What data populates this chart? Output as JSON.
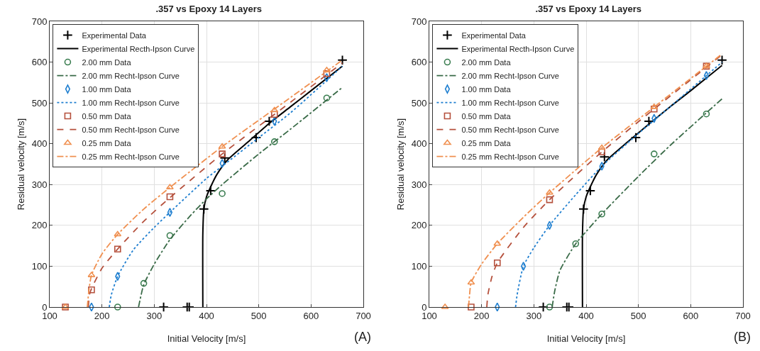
{
  "chart_data": [
    {
      "type": "scatter",
      "title": ".357 vs Epoxy 14 Layers",
      "xlabel": "Initial Velocity [m/s]",
      "ylabel": "Residual velocity [m/s]",
      "xlim": [
        100,
        700
      ],
      "xticks": [
        100,
        200,
        300,
        400,
        500,
        600,
        700
      ],
      "ylim": [
        0,
        700
      ],
      "yticks": [
        0,
        100,
        200,
        300,
        400,
        500,
        600,
        700
      ],
      "grid": true,
      "legend": "top left",
      "annotations": [
        "(A)"
      ],
      "series": [
        {
          "name": "Experimental Data",
          "type": "scatter",
          "marker": "cross",
          "color": "#000000",
          "x": [
            318,
            363,
            367,
            395,
            408,
            435,
            495,
            520,
            660
          ],
          "values": [
            0,
            0,
            0,
            240,
            285,
            365,
            415,
            455,
            605
          ]
        },
        {
          "name": "Experimental Recth-Ipson Curve",
          "type": "line",
          "line_style": "solid",
          "color": "#000000",
          "x": [
            393,
            393,
            395,
            400,
            410,
            420,
            440,
            480,
            520,
            560,
            600,
            660
          ],
          "values": [
            0,
            180,
            240,
            270,
            300,
            325,
            360,
            405,
            450,
            490,
            530,
            590
          ]
        },
        {
          "name": "2.00 mm Data",
          "type": "scatter",
          "marker": "circle",
          "color": "#3a7d50",
          "x": [
            230,
            280,
            330,
            430,
            530,
            630
          ],
          "values": [
            0,
            58,
            175,
            278,
            405,
            512
          ]
        },
        {
          "name": "2.00 mm Recht-Ipson Curve",
          "type": "line",
          "line_style": "dashdot",
          "color": "#3a6b48",
          "x": [
            270,
            275,
            280,
            300,
            330,
            370,
            400,
            430,
            500,
            560,
            660
          ],
          "values": [
            0,
            30,
            55,
            105,
            165,
            225,
            265,
            300,
            375,
            435,
            538
          ]
        },
        {
          "name": "1.00 mm Data",
          "type": "scatter",
          "marker": "diamond",
          "color": "#1f7fd0",
          "x": [
            180,
            230,
            330,
            430,
            530,
            630
          ],
          "values": [
            0,
            75,
            232,
            352,
            455,
            562
          ]
        },
        {
          "name": "1.00 mm Recht-Ipson Curve",
          "type": "line",
          "line_style": "dotted",
          "color": "#1f7fd0",
          "x": [
            214,
            218,
            230,
            260,
            300,
            330,
            400,
            430,
            500,
            560,
            660
          ],
          "values": [
            0,
            30,
            75,
            140,
            195,
            232,
            315,
            345,
            415,
            475,
            590
          ]
        },
        {
          "name": "0.50 mm Data",
          "type": "scatter",
          "marker": "square",
          "color": "#b5503c",
          "x": [
            130,
            180,
            230,
            330,
            430,
            530,
            630
          ],
          "values": [
            0,
            42,
            142,
            270,
            375,
            472,
            572
          ]
        },
        {
          "name": "0.50 mm Recht-Ipson Curve",
          "type": "line",
          "line_style": "dashed",
          "color": "#b5503c",
          "x": [
            174,
            176,
            180,
            200,
            230,
            280,
            330,
            430,
            530,
            660
          ],
          "values": [
            0,
            30,
            45,
            95,
            142,
            210,
            268,
            375,
            472,
            598
          ]
        },
        {
          "name": "0.25 mm Data",
          "type": "scatter",
          "marker": "triangle",
          "color": "#f09050",
          "x": [
            130,
            180,
            230,
            330,
            430,
            530,
            630
          ],
          "values": [
            0,
            78,
            178,
            293,
            393,
            482,
            580
          ]
        },
        {
          "name": "0.25 mm Recht-Ipson Curve",
          "type": "line",
          "line_style": "dashdot",
          "color": "#f09050",
          "x": [
            172,
            175,
            180,
            200,
            230,
            280,
            330,
            430,
            530,
            660
          ],
          "values": [
            0,
            40,
            78,
            130,
            178,
            240,
            293,
            393,
            485,
            605
          ]
        }
      ]
    },
    {
      "type": "scatter",
      "title": ".357 vs Epoxy 14 Layers",
      "xlabel": "Initial Velocity [m/s]",
      "ylabel": "Residual velocity [m/s]",
      "xlim": [
        100,
        700
      ],
      "xticks": [
        100,
        200,
        300,
        400,
        500,
        600,
        700
      ],
      "ylim": [
        0,
        700
      ],
      "yticks": [
        0,
        100,
        200,
        300,
        400,
        500,
        600,
        700
      ],
      "grid": true,
      "legend": "top left",
      "annotations": [
        "(B)"
      ],
      "series": [
        {
          "name": "Experimental Data",
          "type": "scatter",
          "marker": "cross",
          "color": "#000000",
          "x": [
            318,
            363,
            367,
            395,
            408,
            435,
            495,
            520,
            660
          ],
          "values": [
            0,
            0,
            0,
            240,
            285,
            368,
            415,
            455,
            605
          ]
        },
        {
          "name": "Experimental Recth-Ipson Curve",
          "type": "line",
          "line_style": "solid",
          "color": "#000000",
          "x": [
            393,
            393,
            395,
            400,
            410,
            420,
            440,
            480,
            520,
            560,
            600,
            660
          ],
          "values": [
            0,
            180,
            240,
            270,
            300,
            325,
            360,
            405,
            448,
            490,
            530,
            592
          ]
        },
        {
          "name": "2.00 mm Data",
          "type": "scatter",
          "marker": "circle",
          "color": "#3a7d50",
          "x": [
            330,
            380,
            430,
            530,
            630
          ],
          "values": [
            0,
            155,
            228,
            375,
            473
          ]
        },
        {
          "name": "2.00 mm Recht-Ipson Curve",
          "type": "line",
          "line_style": "dashdot",
          "color": "#3a6b48",
          "x": [
            335,
            340,
            350,
            380,
            400,
            430,
            500,
            560,
            660
          ],
          "values": [
            0,
            40,
            90,
            155,
            185,
            228,
            320,
            395,
            510
          ]
        },
        {
          "name": "1.00 mm Data",
          "type": "scatter",
          "marker": "diamond",
          "color": "#1f7fd0",
          "x": [
            230,
            280,
            330,
            430,
            530,
            630
          ],
          "values": [
            0,
            100,
            200,
            345,
            462,
            567
          ]
        },
        {
          "name": "1.00 mm Recht-Ipson Curve",
          "type": "line",
          "line_style": "dotted",
          "color": "#1f7fd0",
          "x": [
            265,
            268,
            280,
            300,
            330,
            380,
            430,
            500,
            560,
            660
          ],
          "values": [
            0,
            30,
            100,
            145,
            200,
            275,
            345,
            425,
            490,
            600
          ]
        },
        {
          "name": "0.50 mm Data",
          "type": "scatter",
          "marker": "square",
          "color": "#b5503c",
          "x": [
            180,
            230,
            330,
            430,
            530,
            630
          ],
          "values": [
            0,
            108,
            263,
            380,
            485,
            590
          ]
        },
        {
          "name": "0.50 mm Recht-Ipson Curve",
          "type": "line",
          "line_style": "dashed",
          "color": "#b5503c",
          "x": [
            210,
            212,
            220,
            230,
            280,
            330,
            430,
            530,
            660
          ],
          "values": [
            0,
            30,
            75,
            108,
            195,
            263,
            380,
            485,
            618
          ]
        },
        {
          "name": "0.25 mm Data",
          "type": "scatter",
          "marker": "triangle",
          "color": "#f09050",
          "x": [
            130,
            180,
            230,
            330,
            430,
            530,
            630
          ],
          "values": [
            0,
            60,
            155,
            280,
            390,
            490,
            590
          ]
        },
        {
          "name": "0.25 mm Recht-Ipson Curve",
          "type": "line",
          "line_style": "dashdot",
          "color": "#f09050",
          "x": [
            175,
            177,
            180,
            200,
            230,
            280,
            330,
            430,
            530,
            660
          ],
          "values": [
            0,
            30,
            60,
            105,
            155,
            220,
            280,
            390,
            490,
            620
          ]
        }
      ]
    }
  ]
}
